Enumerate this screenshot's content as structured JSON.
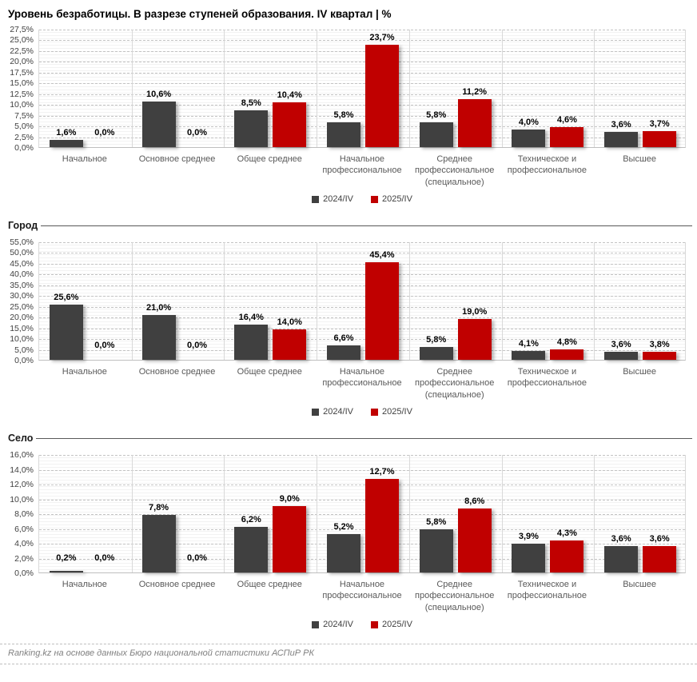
{
  "title": "Уровень безработицы. В разрезе ступеней образования. IV квартал | %",
  "footer": "Ranking.kz на основе данных Бюро национальной статистики АСПиР РК",
  "legend": [
    "2024/IV",
    "2025/IV"
  ],
  "colors": {
    "series1": "#404040",
    "series2": "#C00000"
  },
  "chart_data": [
    {
      "type": "bar",
      "title": "",
      "categories": [
        "Начальное",
        "Основное среднее",
        "Общее среднее",
        "Начальное профессиональное",
        "Среднее профессиональное (специальное)",
        "Техническое и профессиональное",
        "Высшее"
      ],
      "series": [
        {
          "name": "2024/IV",
          "values": [
            1.6,
            10.6,
            8.5,
            5.8,
            5.8,
            4.0,
            3.6
          ]
        },
        {
          "name": "2025/IV",
          "values": [
            0.0,
            0.0,
            10.4,
            23.7,
            11.2,
            4.6,
            3.7
          ]
        }
      ],
      "xlabel": "",
      "ylabel": "",
      "ylim": [
        0,
        27.5
      ],
      "ytick_step": 2.5,
      "grid": true,
      "legend_position": "bottom"
    },
    {
      "type": "bar",
      "title": "Город",
      "categories": [
        "Начальное",
        "Основное среднее",
        "Общее среднее",
        "Начальное профессиональное",
        "Среднее профессиональное (специальное)",
        "Техническое и профессиональное",
        "Высшее"
      ],
      "series": [
        {
          "name": "2024/IV",
          "values": [
            25.6,
            21.0,
            16.4,
            6.6,
            5.8,
            4.1,
            3.6
          ]
        },
        {
          "name": "2025/IV",
          "values": [
            0.0,
            0.0,
            14.0,
            45.4,
            19.0,
            4.8,
            3.8
          ]
        }
      ],
      "xlabel": "",
      "ylabel": "",
      "ylim": [
        0,
        55
      ],
      "ytick_step": 5,
      "grid": true,
      "legend_position": "bottom"
    },
    {
      "type": "bar",
      "title": "Село",
      "categories": [
        "Начальное",
        "Основное среднее",
        "Общее среднее",
        "Начальное профессиональное",
        "Среднее профессиональное (специальное)",
        "Техническое и профессиональное",
        "Высшее"
      ],
      "series": [
        {
          "name": "2024/IV",
          "values": [
            0.2,
            7.8,
            6.2,
            5.2,
            5.8,
            3.9,
            3.6
          ]
        },
        {
          "name": "2025/IV",
          "values": [
            0.0,
            0.0,
            9.0,
            12.7,
            8.6,
            4.3,
            3.6
          ]
        }
      ],
      "xlabel": "",
      "ylabel": "",
      "ylim": [
        0,
        16
      ],
      "ytick_step": 2,
      "grid": true,
      "legend_position": "bottom"
    }
  ]
}
